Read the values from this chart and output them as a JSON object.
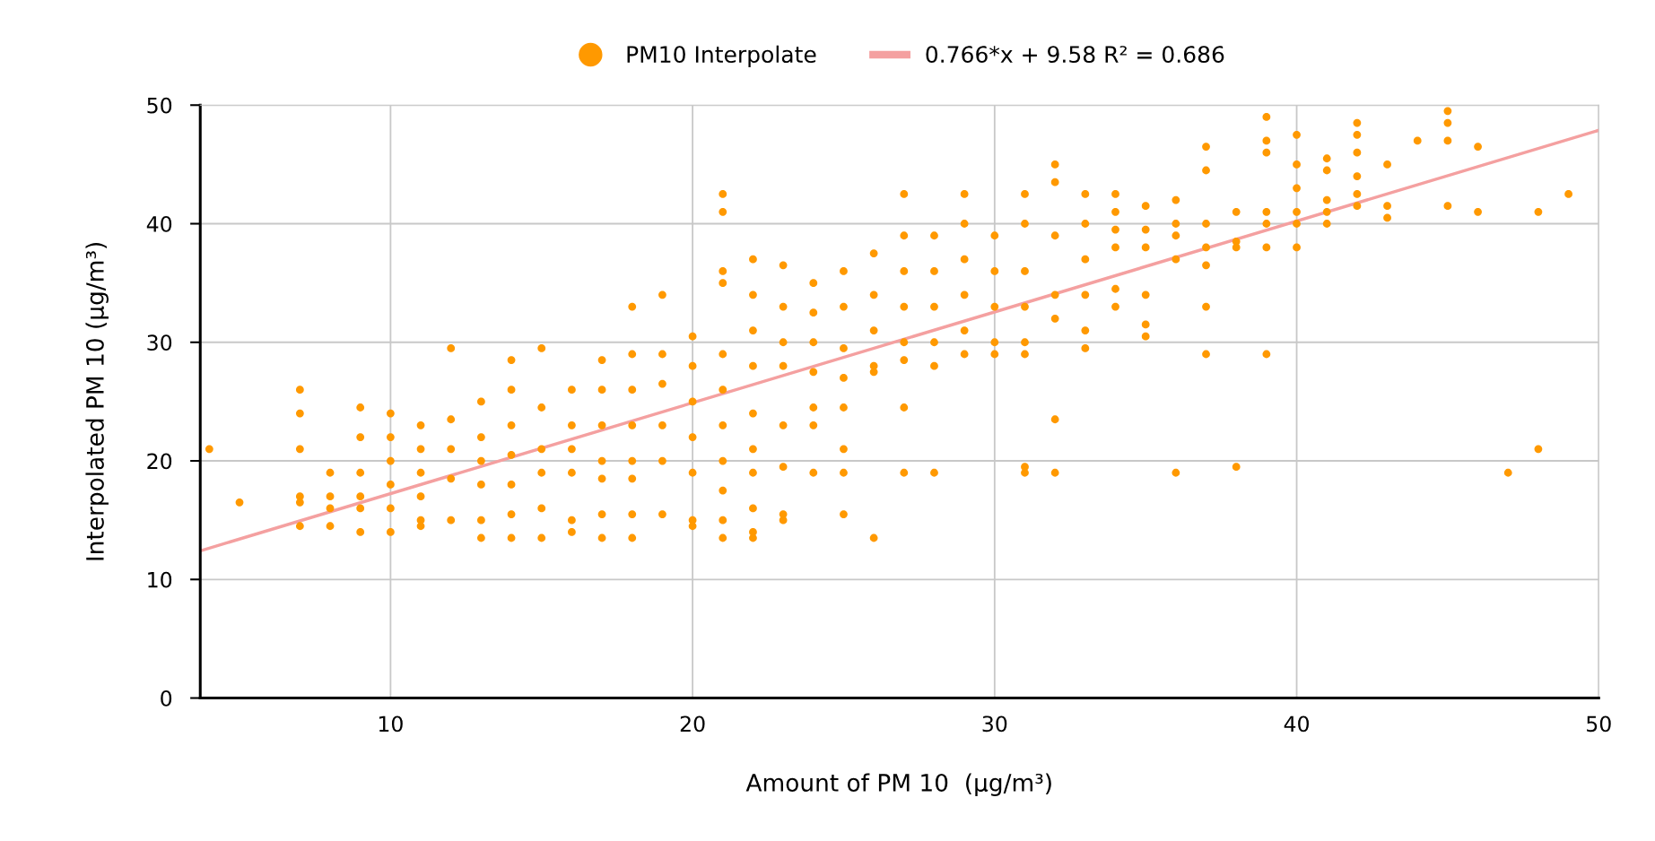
{
  "chart_data": {
    "type": "scatter",
    "xlabel": "Amount of PM 10  (µg/m³)",
    "ylabel": "Interpolated PM 10 (µg/m³)",
    "xlim": [
      3.7,
      50
    ],
    "xticks": [
      10,
      20,
      30,
      40,
      50
    ],
    "ylim": [
      0,
      50
    ],
    "yticks": [
      0,
      10,
      20,
      30,
      40,
      50
    ],
    "grid": true,
    "legend": "top",
    "series": [
      {
        "name": "PM10 Interpolate",
        "marker": "circle",
        "color": "#ff9900",
        "x": [
          4,
          5,
          7,
          7,
          7,
          7,
          7,
          7,
          8,
          8,
          8,
          8,
          9,
          9,
          9,
          9,
          9,
          9,
          10,
          10,
          10,
          10,
          10,
          10,
          11,
          11,
          11,
          11,
          11,
          11,
          12,
          12,
          12,
          12,
          12,
          13,
          13,
          13,
          13,
          13,
          13,
          14,
          14,
          14,
          14,
          14,
          14,
          14,
          15,
          15,
          15,
          15,
          15,
          15,
          16,
          16,
          16,
          16,
          16,
          16,
          17,
          17,
          17,
          17,
          17,
          17,
          17,
          18,
          18,
          18,
          18,
          18,
          18,
          18,
          18,
          19,
          19,
          19,
          19,
          19,
          19,
          20,
          20,
          20,
          20,
          20,
          20,
          20,
          21,
          21,
          21,
          21,
          21,
          21,
          21,
          21,
          21,
          21,
          21,
          22,
          22,
          22,
          22,
          22,
          22,
          22,
          22,
          22,
          22,
          23,
          23,
          23,
          23,
          23,
          23,
          23,
          23,
          24,
          24,
          24,
          24,
          24,
          24,
          24,
          25,
          25,
          25,
          25,
          25,
          25,
          25,
          25,
          26,
          26,
          26,
          26,
          26,
          26,
          27,
          27,
          27,
          27,
          27,
          27,
          27,
          27,
          28,
          28,
          28,
          28,
          28,
          28,
          29,
          29,
          29,
          29,
          29,
          29,
          30,
          30,
          30,
          30,
          30,
          31,
          31,
          31,
          31,
          31,
          31,
          31,
          31,
          32,
          32,
          32,
          32,
          32,
          32,
          32,
          33,
          33,
          33,
          33,
          33,
          33,
          34,
          34,
          34,
          34,
          34,
          34,
          35,
          35,
          35,
          35,
          35,
          35,
          36,
          36,
          36,
          36,
          36,
          37,
          37,
          37,
          37,
          37,
          37,
          37,
          38,
          38,
          38,
          38,
          39,
          39,
          39,
          39,
          39,
          39,
          39,
          40,
          40,
          40,
          40,
          40,
          40,
          41,
          41,
          41,
          41,
          41,
          42,
          42,
          42,
          42,
          42,
          42,
          43,
          43,
          43,
          44,
          45,
          45,
          45,
          45,
          46,
          46,
          47,
          48,
          48,
          49
        ],
        "values": [
          21,
          16.5,
          26,
          24,
          21,
          17,
          16.5,
          14.5,
          19,
          17,
          16,
          14.5,
          24.5,
          22,
          19,
          17,
          16,
          14,
          24,
          22,
          20,
          18,
          16,
          14,
          23,
          21,
          19,
          17,
          15,
          14.5,
          29.5,
          23.5,
          21,
          18.5,
          15,
          25,
          22,
          20,
          18,
          15,
          13.5,
          28.5,
          26,
          23,
          20.5,
          18,
          15.5,
          13.5,
          29.5,
          24.5,
          21,
          19,
          16,
          13.5,
          26,
          23,
          21,
          19,
          15,
          14,
          28.5,
          26,
          23,
          20,
          18.5,
          15.5,
          13.5,
          33,
          29,
          26,
          23,
          20,
          18.5,
          15.5,
          13.5,
          34,
          29,
          26.5,
          23,
          20,
          15.5,
          30.5,
          28,
          25,
          22,
          19,
          15,
          14.5,
          42.5,
          41,
          36,
          35,
          29,
          26,
          23,
          20,
          17.5,
          15,
          13.5,
          37,
          34,
          31,
          28,
          24,
          21,
          19,
          16,
          14,
          13.5,
          36.5,
          33,
          30,
          28,
          23,
          19.5,
          15.5,
          15,
          35,
          32.5,
          30,
          27.5,
          24.5,
          23,
          19,
          36,
          33,
          29.5,
          27,
          24.5,
          21,
          19,
          15.5,
          37.5,
          34,
          31,
          28,
          27.5,
          13.5,
          42.5,
          39,
          36,
          33,
          30,
          28.5,
          24.5,
          19,
          39,
          36,
          33,
          30,
          28,
          19,
          42.5,
          40,
          37,
          34,
          31,
          29,
          39,
          36,
          33,
          30,
          29,
          42.5,
          40,
          36,
          33,
          30,
          29,
          19.5,
          19,
          45,
          43.5,
          39,
          34,
          32,
          23.5,
          19,
          42.5,
          40,
          37,
          34,
          31,
          29.5,
          42.5,
          41,
          39.5,
          38,
          34.5,
          33,
          41.5,
          39.5,
          38,
          34,
          31.5,
          30.5,
          42,
          40,
          39,
          37,
          19,
          46.5,
          44.5,
          40,
          38,
          36.5,
          33,
          29,
          41,
          38.5,
          38,
          19.5,
          49,
          47,
          46,
          41,
          40,
          38,
          29,
          47.5,
          45,
          43,
          41,
          40,
          38,
          45.5,
          44.5,
          42,
          41,
          40,
          48.5,
          47.5,
          46,
          44,
          42.5,
          41.5,
          45,
          41.5,
          40.5,
          47,
          49.5,
          48.5,
          47,
          41.5,
          46.5,
          41,
          19,
          41,
          21,
          42.5
        ]
      },
      {
        "name": "0.766*x + 9.58 R² = 0.686",
        "type": "line",
        "marker": "none",
        "color": "#f4a0a0",
        "x": [
          3.7,
          50
        ],
        "values": [
          12.41,
          47.88
        ]
      }
    ]
  }
}
